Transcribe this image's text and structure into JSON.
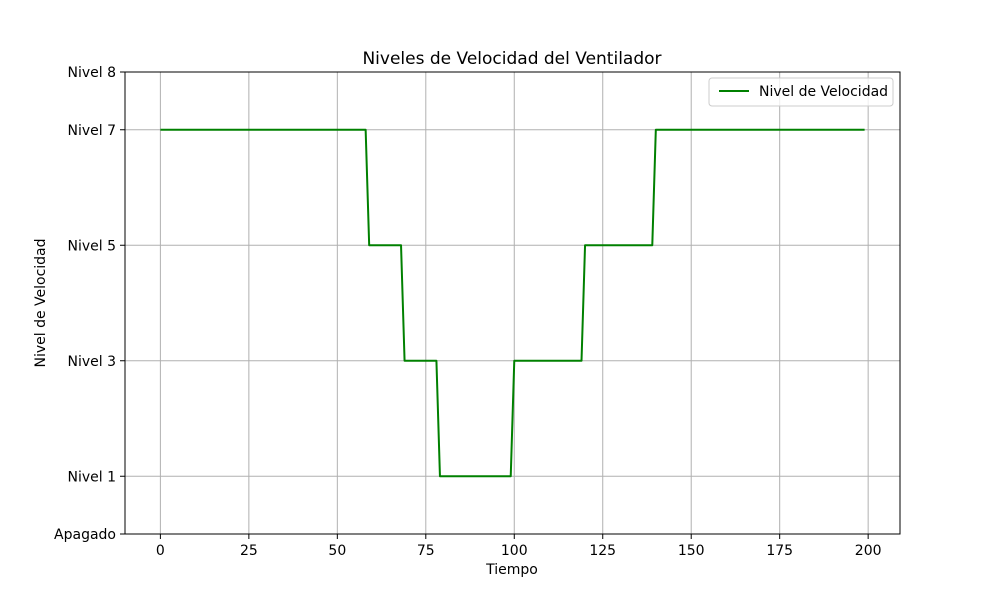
{
  "chart_data": {
    "type": "line",
    "title": "Niveles de Velocidad del Ventilador",
    "xlabel": "Tiempo",
    "ylabel": "Nivel de Velocidad",
    "xlim": [
      -10,
      209
    ],
    "ylim": [
      0,
      8
    ],
    "x_ticks": [
      0,
      25,
      50,
      75,
      100,
      125,
      150,
      175,
      200
    ],
    "x_tick_labels": [
      "0",
      "25",
      "50",
      "75",
      "100",
      "125",
      "150",
      "175",
      "200"
    ],
    "y_ticks": [
      0,
      1,
      3,
      5,
      7,
      8
    ],
    "y_tick_labels": [
      "Apagado",
      "Nivel 1",
      "Nivel 3",
      "Nivel 5",
      "Nivel 7",
      "Nivel 8"
    ],
    "grid": true,
    "legend_position": "top-right",
    "series": [
      {
        "name": "Nivel de Velocidad",
        "color": "#008000",
        "x": [
          0,
          58,
          59,
          68,
          69,
          78,
          79,
          99,
          100,
          119,
          120,
          139,
          140,
          199
        ],
        "y": [
          7,
          7,
          5,
          5,
          3,
          3,
          1,
          1,
          3,
          3,
          5,
          5,
          7,
          7
        ]
      }
    ]
  }
}
